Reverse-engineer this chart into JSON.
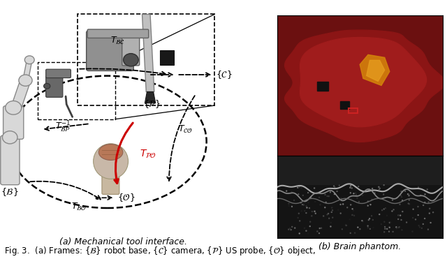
{
  "fig_width": 6.4,
  "fig_height": 3.71,
  "dpi": 100,
  "background_color": "#ffffff",
  "subcap_a": "(a) Mechanical tool interface.",
  "subcap_b": "(b) Brain phantom.",
  "arrow_color_red": "#cc0000",
  "arrow_color_black": "#000000",
  "caption": "Fig. 3.  (a) Frames: $\\{\\mathcal{B}\\}$ robot base, $\\{\\mathcal{C}\\}$ camera, $\\{\\mathcal{P}\\}$ US probe, $\\{\\mathcal{O}\\}$ object,"
}
